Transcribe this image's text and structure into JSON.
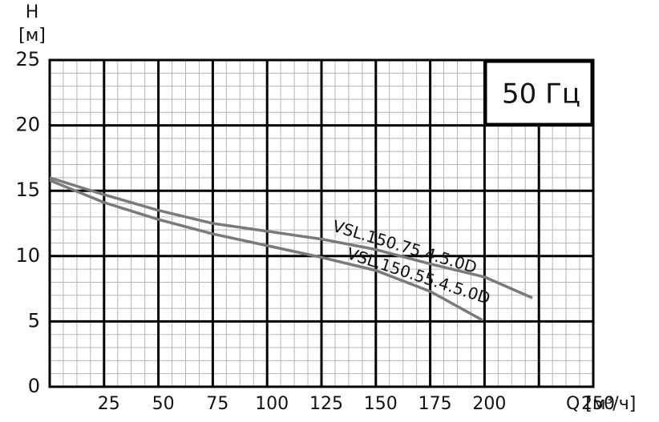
{
  "chart_data": {
    "type": "line",
    "y_label": "H",
    "y_unit": "[м]",
    "x_label": "Q [м³/ч]",
    "annotation": "50 Гц",
    "xlim": [
      0,
      250
    ],
    "ylim": [
      0,
      25
    ],
    "xticks": [
      25,
      50,
      75,
      100,
      125,
      150,
      175,
      200,
      250
    ],
    "yticks": [
      0,
      5,
      10,
      15,
      20,
      25
    ],
    "grid": true,
    "series": [
      {
        "name": "VSL.150.75.4.5.0D",
        "color": "#7a7a7a",
        "x": [
          0,
          25,
          50,
          75,
          100,
          125,
          150,
          175,
          200,
          222
        ],
        "values": [
          16.0,
          14.7,
          13.5,
          12.5,
          11.9,
          11.3,
          10.5,
          9.4,
          8.4,
          6.8
        ]
      },
      {
        "name": "VSL.150.55.4.5.0D",
        "color": "#7a7a7a",
        "x": [
          0,
          25,
          50,
          75,
          100,
          125,
          150,
          175,
          199
        ],
        "values": [
          15.8,
          14.1,
          12.8,
          11.7,
          10.8,
          9.9,
          8.9,
          7.3,
          5.1
        ]
      }
    ]
  }
}
